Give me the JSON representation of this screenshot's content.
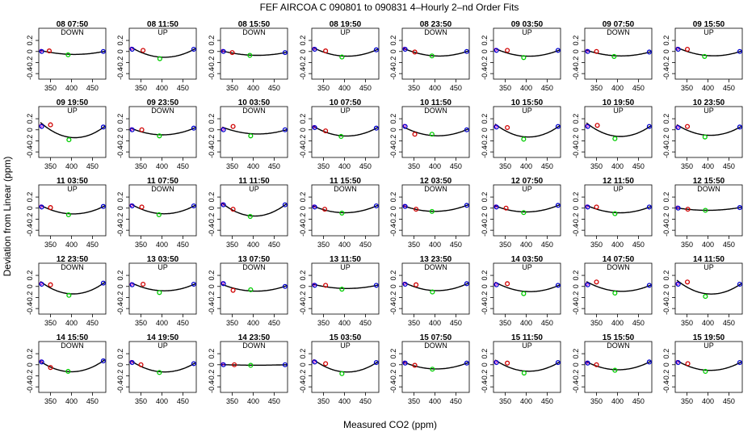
{
  "figure": {
    "title": "FEF   AIRCOA C   090801 to 090831   4–Hourly 2–nd Order Fits",
    "xlabel": "Measured CO2 (ppm)",
    "ylabel": "Deviation from Linear (ppm)"
  },
  "chart_data": {
    "type": "scatter",
    "layout": "small-multiples 8 columns x 5 rows",
    "x_ticks": [
      350,
      400,
      450
    ],
    "y_ticks": [
      -0.4,
      -0.2,
      0.0,
      0.2
    ],
    "y_tick_labels": [
      "-0.4",
      "-0.2",
      "0",
      "0.2"
    ],
    "xlim": [
      322,
      482
    ],
    "ylim": [
      -0.5,
      0.42
    ],
    "colors": {
      "fit_line": "#000000",
      "low_std": "#d00000",
      "mid_std": "#00cc00",
      "high_std": "#0000cc",
      "ref_mark": "#cc00cc"
    },
    "panels": [
      {
        "title": "08 07:50",
        "label": "DOWN",
        "x": [
          329,
          347,
          392,
          476
        ],
        "y": [
          0.0,
          0.01,
          -0.06,
          0.0
        ]
      },
      {
        "title": "08 11:50",
        "label": "UP",
        "x": [
          329,
          355,
          395,
          476
        ],
        "y": [
          0.04,
          0.02,
          -0.13,
          0.04
        ]
      },
      {
        "title": "08 15:50",
        "label": "DOWN",
        "x": [
          329,
          350,
          392,
          476
        ],
        "y": [
          0.0,
          -0.02,
          -0.07,
          -0.02
        ]
      },
      {
        "title": "08 19:50",
        "label": "UP",
        "x": [
          329,
          355,
          394,
          476
        ],
        "y": [
          0.04,
          0.01,
          -0.1,
          0.03
        ]
      },
      {
        "title": "08 23:50",
        "label": "DOWN",
        "x": [
          329,
          352,
          393,
          476
        ],
        "y": [
          0.04,
          -0.01,
          -0.08,
          0.0
        ]
      },
      {
        "title": "09 03:50",
        "label": "UP",
        "x": [
          329,
          355,
          394,
          476
        ],
        "y": [
          0.02,
          0.02,
          -0.11,
          0.02
        ]
      },
      {
        "title": "09 07:50",
        "label": "DOWN",
        "x": [
          329,
          350,
          392,
          476
        ],
        "y": [
          0.0,
          0.0,
          -0.09,
          -0.01
        ]
      },
      {
        "title": "09 15:50",
        "label": "UP",
        "x": [
          329,
          351,
          392,
          476
        ],
        "y": [
          0.04,
          0.04,
          -0.09,
          0.0
        ]
      },
      {
        "title": "09 19:50",
        "label": "UP",
        "x": [
          329,
          350,
          394,
          476
        ],
        "y": [
          0.06,
          0.09,
          -0.18,
          0.05
        ]
      },
      {
        "title": "09 23:50",
        "label": "DOWN",
        "x": [
          329,
          352,
          394,
          476
        ],
        "y": [
          0.0,
          0.0,
          -0.11,
          0.03
        ]
      },
      {
        "title": "10 03:50",
        "label": "DOWN",
        "x": [
          329,
          352,
          394,
          476
        ],
        "y": [
          0.0,
          0.06,
          -0.11,
          0.0
        ]
      },
      {
        "title": "10 07:50",
        "label": "UP",
        "x": [
          329,
          355,
          392,
          476
        ],
        "y": [
          0.04,
          -0.02,
          -0.12,
          0.03
        ]
      },
      {
        "title": "10 11:50",
        "label": "DOWN",
        "x": [
          329,
          352,
          393,
          476
        ],
        "y": [
          0.06,
          -0.08,
          -0.08,
          0.0
        ]
      },
      {
        "title": "10 15:50",
        "label": "UP",
        "x": [
          329,
          355,
          394,
          476
        ],
        "y": [
          0.05,
          0.04,
          -0.17,
          0.06
        ]
      },
      {
        "title": "10 19:50",
        "label": "UP",
        "x": [
          329,
          352,
          394,
          476
        ],
        "y": [
          0.06,
          0.08,
          -0.16,
          0.06
        ]
      },
      {
        "title": "10 23:50",
        "label": "UP",
        "x": [
          329,
          351,
          393,
          476
        ],
        "y": [
          0.04,
          0.06,
          -0.13,
          0.05
        ]
      },
      {
        "title": "11 03:50",
        "label": "UP",
        "x": [
          329,
          350,
          393,
          476
        ],
        "y": [
          0.02,
          0.01,
          -0.12,
          0.03
        ]
      },
      {
        "title": "11 07:50",
        "label": "DOWN",
        "x": [
          329,
          352,
          393,
          476
        ],
        "y": [
          0.04,
          0.02,
          -0.12,
          0.04
        ]
      },
      {
        "title": "11 11:50",
        "label": "UP",
        "x": [
          329,
          352,
          393,
          476
        ],
        "y": [
          0.06,
          -0.02,
          -0.15,
          0.06
        ]
      },
      {
        "title": "11 15:50",
        "label": "DOWN",
        "x": [
          329,
          353,
          394,
          476
        ],
        "y": [
          0.02,
          -0.02,
          -0.09,
          0.04
        ]
      },
      {
        "title": "12 03:50",
        "label": "DOWN",
        "x": [
          329,
          355,
          393,
          476
        ],
        "y": [
          0.03,
          -0.02,
          -0.06,
          0.05
        ]
      },
      {
        "title": "12 07:50",
        "label": "UP",
        "x": [
          329,
          352,
          394,
          476
        ],
        "y": [
          0.02,
          0.0,
          -0.08,
          0.05
        ]
      },
      {
        "title": "12 11:50",
        "label": "UP",
        "x": [
          329,
          350,
          394,
          476
        ],
        "y": [
          0.02,
          0.02,
          -0.1,
          0.02
        ]
      },
      {
        "title": "12 15:50",
        "label": "DOWN",
        "x": [
          329,
          352,
          394,
          476
        ],
        "y": [
          0.0,
          -0.02,
          -0.04,
          0.01
        ]
      },
      {
        "title": "12 23:50",
        "label": "DOWN",
        "x": [
          329,
          350,
          394,
          476
        ],
        "y": [
          0.04,
          0.03,
          -0.16,
          0.06
        ]
      },
      {
        "title": "13 03:50",
        "label": "UP",
        "x": [
          329,
          355,
          394,
          476
        ],
        "y": [
          0.03,
          0.04,
          -0.11,
          0.04
        ]
      },
      {
        "title": "13 07:50",
        "label": "DOWN",
        "x": [
          329,
          352,
          394,
          476
        ],
        "y": [
          0.05,
          -0.07,
          -0.06,
          0.0
        ]
      },
      {
        "title": "13 11:50",
        "label": "UP",
        "x": [
          329,
          355,
          394,
          476
        ],
        "y": [
          0.02,
          0.02,
          -0.05,
          0.02
        ]
      },
      {
        "title": "13 23:50",
        "label": "DOWN",
        "x": [
          329,
          355,
          394,
          476
        ],
        "y": [
          0.04,
          0.03,
          -0.1,
          0.05
        ]
      },
      {
        "title": "14 03:50",
        "label": "UP",
        "x": [
          329,
          355,
          394,
          476
        ],
        "y": [
          0.03,
          0.05,
          -0.13,
          0.02
        ]
      },
      {
        "title": "14 07:50",
        "label": "DOWN",
        "x": [
          329,
          350,
          394,
          476
        ],
        "y": [
          0.03,
          0.08,
          -0.12,
          0.02
        ]
      },
      {
        "title": "14 11:50",
        "label": "UP",
        "x": [
          329,
          351,
          394,
          476
        ],
        "y": [
          0.04,
          0.08,
          -0.18,
          0.04
        ]
      },
      {
        "title": "14 15:50",
        "label": "DOWN",
        "x": [
          329,
          350,
          392,
          476
        ],
        "y": [
          0.05,
          -0.05,
          -0.12,
          0.07
        ]
      },
      {
        "title": "14 19:50",
        "label": "UP",
        "x": [
          329,
          350,
          394,
          476
        ],
        "y": [
          0.04,
          0.0,
          -0.14,
          0.02
        ]
      },
      {
        "title": "14 23:50",
        "label": "DOWN",
        "x": [
          329,
          355,
          394,
          476
        ],
        "y": [
          0.0,
          0.0,
          -0.01,
          0.0
        ]
      },
      {
        "title": "15 03:50",
        "label": "UP",
        "x": [
          329,
          355,
          394,
          476
        ],
        "y": [
          0.05,
          0.02,
          -0.16,
          0.04
        ]
      },
      {
        "title": "15 07:50",
        "label": "DOWN",
        "x": [
          329,
          352,
          394,
          476
        ],
        "y": [
          0.03,
          -0.01,
          -0.08,
          0.03
        ]
      },
      {
        "title": "15 11:50",
        "label": "UP",
        "x": [
          329,
          355,
          395,
          476
        ],
        "y": [
          0.04,
          0.03,
          -0.15,
          0.04
        ]
      },
      {
        "title": "15 15:50",
        "label": "DOWN",
        "x": [
          329,
          350,
          394,
          476
        ],
        "y": [
          0.03,
          0.0,
          -0.1,
          0.05
        ]
      },
      {
        "title": "15 19:50",
        "label": "UP",
        "x": [
          329,
          352,
          394,
          476
        ],
        "y": [
          0.04,
          0.02,
          -0.12,
          0.04
        ]
      }
    ]
  }
}
